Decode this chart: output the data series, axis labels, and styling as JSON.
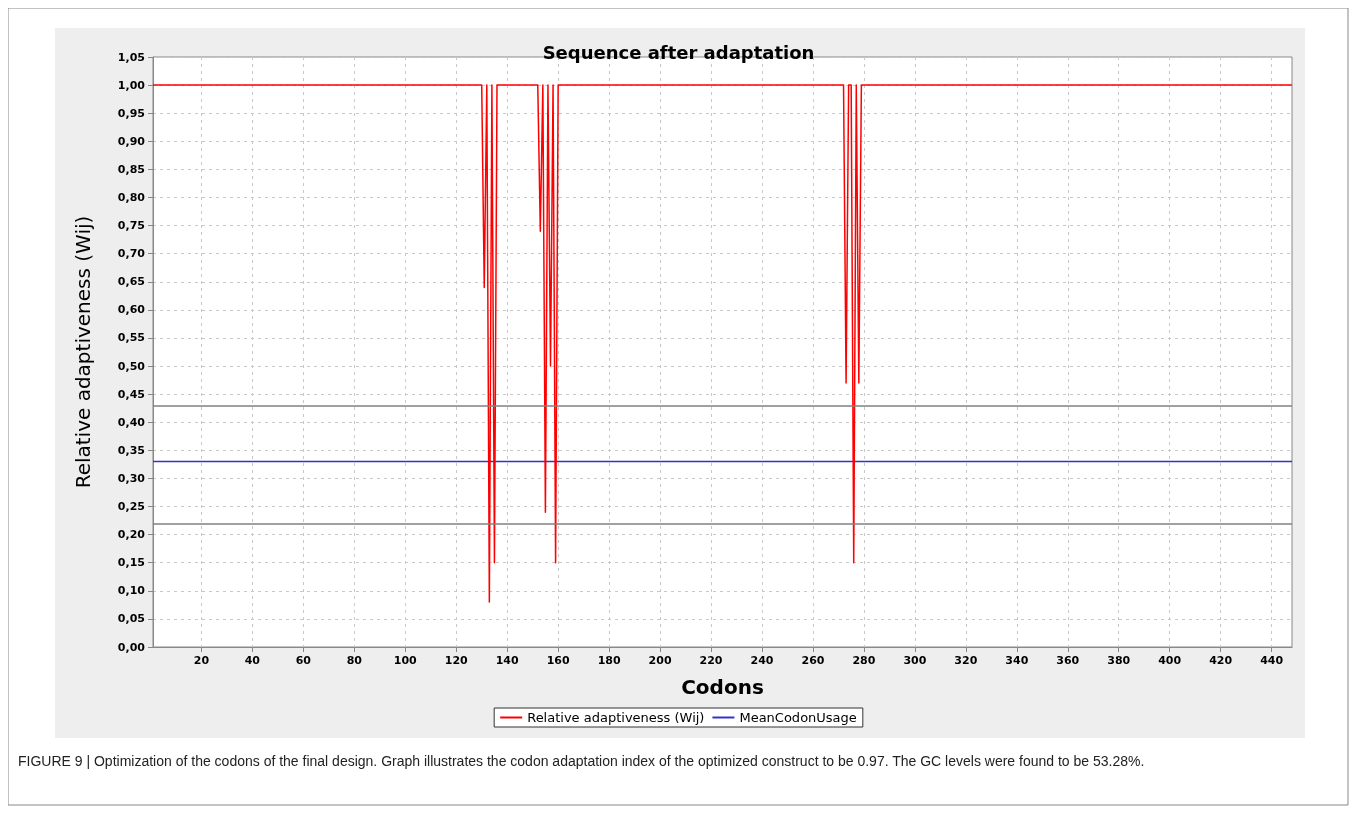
{
  "chart_data": {
    "type": "line",
    "title": "Sequence after adaptation",
    "xlabel": "Codons",
    "ylabel": "Relative adaptiveness (Wij)",
    "xlim": [
      1,
      448
    ],
    "xticks": [
      20,
      40,
      60,
      80,
      100,
      120,
      140,
      160,
      180,
      200,
      220,
      240,
      260,
      280,
      300,
      320,
      340,
      360,
      380,
      400,
      420,
      440
    ],
    "ylim": [
      0,
      1.05
    ],
    "yticks": [
      {
        "value": 0,
        "label": "0,00"
      },
      {
        "value": 0.05,
        "label": "0,05"
      },
      {
        "value": 0.1,
        "label": "0,10"
      },
      {
        "value": 0.15,
        "label": "0,15"
      },
      {
        "value": 0.2,
        "label": "0,20"
      },
      {
        "value": 0.25,
        "label": "0,25"
      },
      {
        "value": 0.3,
        "label": "0,30"
      },
      {
        "value": 0.35,
        "label": "0,35"
      },
      {
        "value": 0.4,
        "label": "0,40"
      },
      {
        "value": 0.45,
        "label": "0,45"
      },
      {
        "value": 0.5,
        "label": "0,50"
      },
      {
        "value": 0.55,
        "label": "0,55"
      },
      {
        "value": 0.6,
        "label": "0,60"
      },
      {
        "value": 0.65,
        "label": "0,65"
      },
      {
        "value": 0.7,
        "label": "0,70"
      },
      {
        "value": 0.75,
        "label": "0,75"
      },
      {
        "value": 0.8,
        "label": "0,80"
      },
      {
        "value": 0.85,
        "label": "0,85"
      },
      {
        "value": 0.9,
        "label": "0,90"
      },
      {
        "value": 0.95,
        "label": "0,95"
      },
      {
        "value": 1,
        "label": "1,00"
      },
      {
        "value": 1.05,
        "label": "1,05"
      }
    ],
    "series": [
      {
        "name": "Relative adaptiveness (Wij)",
        "color": "#ff0000",
        "x": [
          1,
          130,
          131,
          132,
          133,
          134,
          135,
          136,
          152,
          153,
          154,
          155,
          156,
          157,
          158,
          159,
          160,
          272,
          273,
          274,
          275,
          276,
          277,
          278,
          279,
          448
        ],
        "values": [
          1,
          1,
          0.64,
          1,
          0.08,
          1,
          0.15,
          1,
          1,
          0.74,
          1,
          0.24,
          1,
          0.5,
          1,
          0.15,
          1,
          1,
          0.47,
          1,
          1,
          0.15,
          1,
          0.47,
          1,
          1
        ]
      },
      {
        "name": "MeanCodonUsage",
        "color": "#3333cc",
        "x": [
          1,
          448
        ],
        "values": [
          0.33,
          0.33
        ]
      }
    ],
    "ref_lines": [
      {
        "axis": "y",
        "value": 0.43,
        "color": "#808080"
      },
      {
        "axis": "y",
        "value": 0.22,
        "color": "#808080"
      }
    ],
    "grid": true,
    "legend": "bottom",
    "marker": "none",
    "line_style": "solid",
    "annotations": [
      "FIGURE 9 | Optimization of the codons of the final design. Graph illustrates the codon adaptation index of the optimized construct to be 0.97. The GC levels were found to be 53.28%."
    ]
  }
}
